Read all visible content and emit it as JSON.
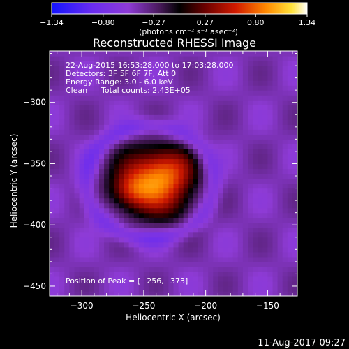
{
  "chart_data": {
    "type": "heatmap",
    "title": "Reconstructed RHESSI Image",
    "xlabel": "Heliocentric X (arcsec)",
    "ylabel": "Heliocentric Y (arcsec)",
    "xlim": [
      -326,
      -126
    ],
    "ylim": [
      -458,
      -258
    ],
    "x_ticks": [
      -300,
      -250,
      -200,
      -150
    ],
    "y_ticks": [
      -300,
      -350,
      -400,
      -450
    ],
    "x_tick_labels": [
      "−300",
      "−250",
      "−200",
      "−150"
    ],
    "y_tick_labels": [
      "−300",
      "−350",
      "−400",
      "−450"
    ],
    "colorbar": {
      "min": -1.34,
      "max": 1.34,
      "ticks": [
        -1.34,
        -0.8,
        -0.27,
        0.27,
        0.8,
        1.34
      ],
      "tick_labels": [
        "−1.34",
        "−0.80",
        "−0.27",
        "0.27",
        "0.80",
        "1.34"
      ],
      "label": "(photons cm⁻² s⁻¹ asec⁻²)"
    },
    "components": [
      {
        "x": -242,
        "y": -362,
        "sigma_x": 22,
        "sigma_y": 19,
        "amplitude": 1.15
      },
      {
        "x": -262,
        "y": -373,
        "sigma_x": 12,
        "sigma_y": 10,
        "amplitude": 0.45
      },
      {
        "x": -226,
        "y": -353,
        "sigma_x": 14,
        "sigma_y": 12,
        "amplitude": 0.3
      },
      {
        "x": -228,
        "y": -385,
        "sigma_x": 18,
        "sigma_y": 15,
        "amplitude": 0.25
      }
    ],
    "background": -0.45,
    "peak": {
      "x": -256,
      "y": -373
    }
  },
  "annotations": {
    "time_range": "22-Aug-2015 16:53:28.000 to 17:03:28.000",
    "detectors": "Detectors: 3F 5F 6F 7F, Att 0",
    "energy_range": "Energy Range: 3.0 - 6.0 keV",
    "algorithm": "Clean",
    "total_counts": "Total counts: 2.43E+05",
    "peak_position": "Position of Peak = [−256,−373]"
  },
  "footer": {
    "timestamp": "11-Aug-2017 09:27"
  }
}
